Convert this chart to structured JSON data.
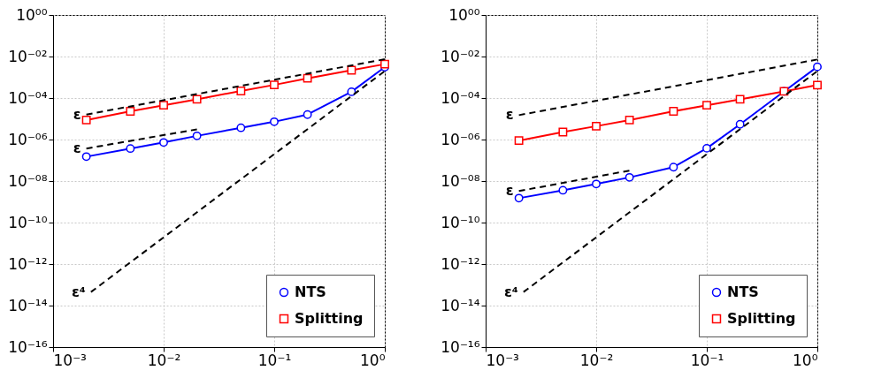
{
  "chart_data": [
    {
      "type": "line",
      "log": "xy",
      "grid": true,
      "legend": "bottom right",
      "xlim": [
        0.001,
        1
      ],
      "ylim": [
        1e-16,
        1
      ],
      "xticks": [
        {
          "value": 0.001,
          "label": "10⁻³"
        },
        {
          "value": 0.01,
          "label": "10⁻²"
        },
        {
          "value": 0.1,
          "label": "10⁻¹"
        },
        {
          "value": 1,
          "label": "10⁰"
        }
      ],
      "yticks": [
        {
          "value": 1e-16,
          "label": "10⁻¹⁶"
        },
        {
          "value": 1e-14,
          "label": "10⁻¹⁴"
        },
        {
          "value": 1e-12,
          "label": "10⁻¹²"
        },
        {
          "value": 1e-10,
          "label": "10⁻¹⁰"
        },
        {
          "value": 1e-08,
          "label": "10⁻⁰⁸"
        },
        {
          "value": 1e-06,
          "label": "10⁻⁰⁶"
        },
        {
          "value": 0.0001,
          "label": "10⁻⁰⁴"
        },
        {
          "value": 0.01,
          "label": "10⁻⁰²"
        },
        {
          "value": 1,
          "label": "10⁰⁰"
        }
      ],
      "x": [
        0.002,
        0.005,
        0.01,
        0.02,
        0.05,
        0.1,
        0.2,
        0.5,
        1
      ],
      "series": [
        {
          "name": "NTS",
          "color": "#0000ff",
          "marker": "circle",
          "line_style": "solid",
          "values": [
            1.5e-07,
            3.7e-07,
            7.2e-07,
            1.5e-06,
            3.7e-06,
            7.2e-06,
            1.6e-05,
            0.0002,
            0.0031
          ]
        },
        {
          "name": "Splitting",
          "color": "#ff0000",
          "marker": "square",
          "line_style": "solid",
          "values": [
            8.7e-06,
            2.3e-05,
            4.5e-05,
            8.7e-05,
            0.00022,
            0.00043,
            0.00089,
            0.0022,
            0.0043
          ]
        },
        {
          "type": "line",
          "color": "#000000",
          "marker": "none",
          "line_style": "dashed",
          "x": [
            0.002,
            1
          ],
          "values": [
            1.6e-05,
            0.0074
          ]
        },
        {
          "type": "line",
          "color": "#000000",
          "marker": "none",
          "line_style": "dashed",
          "x": [
            0.002,
            0.02
          ],
          "values": [
            3.7e-07,
            3.1e-06
          ]
        },
        {
          "type": "line",
          "color": "#000000",
          "marker": "none",
          "line_style": "dashed",
          "x": [
            0.0022,
            1
          ],
          "values": [
            4.5e-14,
            0.002
          ]
        }
      ],
      "annotations": [
        "ε",
        "ε",
        "ε⁴"
      ]
    },
    {
      "type": "line",
      "log": "xy",
      "grid": true,
      "legend": "bottom right",
      "xlim": [
        0.001,
        1
      ],
      "ylim": [
        1e-16,
        1
      ],
      "xticks": [
        {
          "value": 0.001,
          "label": "10⁻³"
        },
        {
          "value": 0.01,
          "label": "10⁻²"
        },
        {
          "value": 0.1,
          "label": "10⁻¹"
        },
        {
          "value": 1,
          "label": "10⁰"
        }
      ],
      "yticks": [
        {
          "value": 1e-16,
          "label": "10⁻¹⁶"
        },
        {
          "value": 1e-14,
          "label": "10⁻¹⁴"
        },
        {
          "value": 1e-12,
          "label": "10⁻¹²"
        },
        {
          "value": 1e-10,
          "label": "10⁻¹⁰"
        },
        {
          "value": 1e-08,
          "label": "10⁻⁰⁸"
        },
        {
          "value": 1e-06,
          "label": "10⁻⁰⁶"
        },
        {
          "value": 0.0001,
          "label": "10⁻⁰⁴"
        },
        {
          "value": 0.01,
          "label": "10⁻⁰²"
        },
        {
          "value": 1,
          "label": "10⁰⁰"
        }
      ],
      "x": [
        0.002,
        0.005,
        0.01,
        0.02,
        0.05,
        0.1,
        0.2,
        0.5,
        1
      ],
      "series": [
        {
          "name": "NTS",
          "color": "#0000ff",
          "marker": "circle",
          "line_style": "solid",
          "values": [
            1.5e-09,
            3.6e-09,
            7.2e-09,
            1.5e-08,
            4.7e-08,
            3.8e-07,
            5.4e-06,
            0.00021,
            0.0032
          ]
        },
        {
          "name": "Splitting",
          "color": "#ff0000",
          "marker": "square",
          "line_style": "solid",
          "values": [
            8.9e-07,
            2.3e-06,
            4.4e-06,
            8.7e-06,
            2.3e-05,
            4.5e-05,
            8.7e-05,
            0.00021,
            0.00042
          ]
        },
        {
          "type": "line",
          "color": "#000000",
          "marker": "none",
          "line_style": "dashed",
          "x": [
            0.002,
            1
          ],
          "values": [
            1.5e-05,
            0.0072
          ]
        },
        {
          "type": "line",
          "color": "#000000",
          "marker": "none",
          "line_style": "dashed",
          "x": [
            0.002,
            0.02
          ],
          "values": [
            3.3e-09,
            3.2e-08
          ]
        },
        {
          "type": "line",
          "color": "#000000",
          "marker": "none",
          "line_style": "dashed",
          "x": [
            0.0022,
            1
          ],
          "values": [
            4.5e-14,
            0.002
          ]
        }
      ],
      "annotations": [
        "ε",
        "ε",
        "ε⁴"
      ]
    }
  ]
}
